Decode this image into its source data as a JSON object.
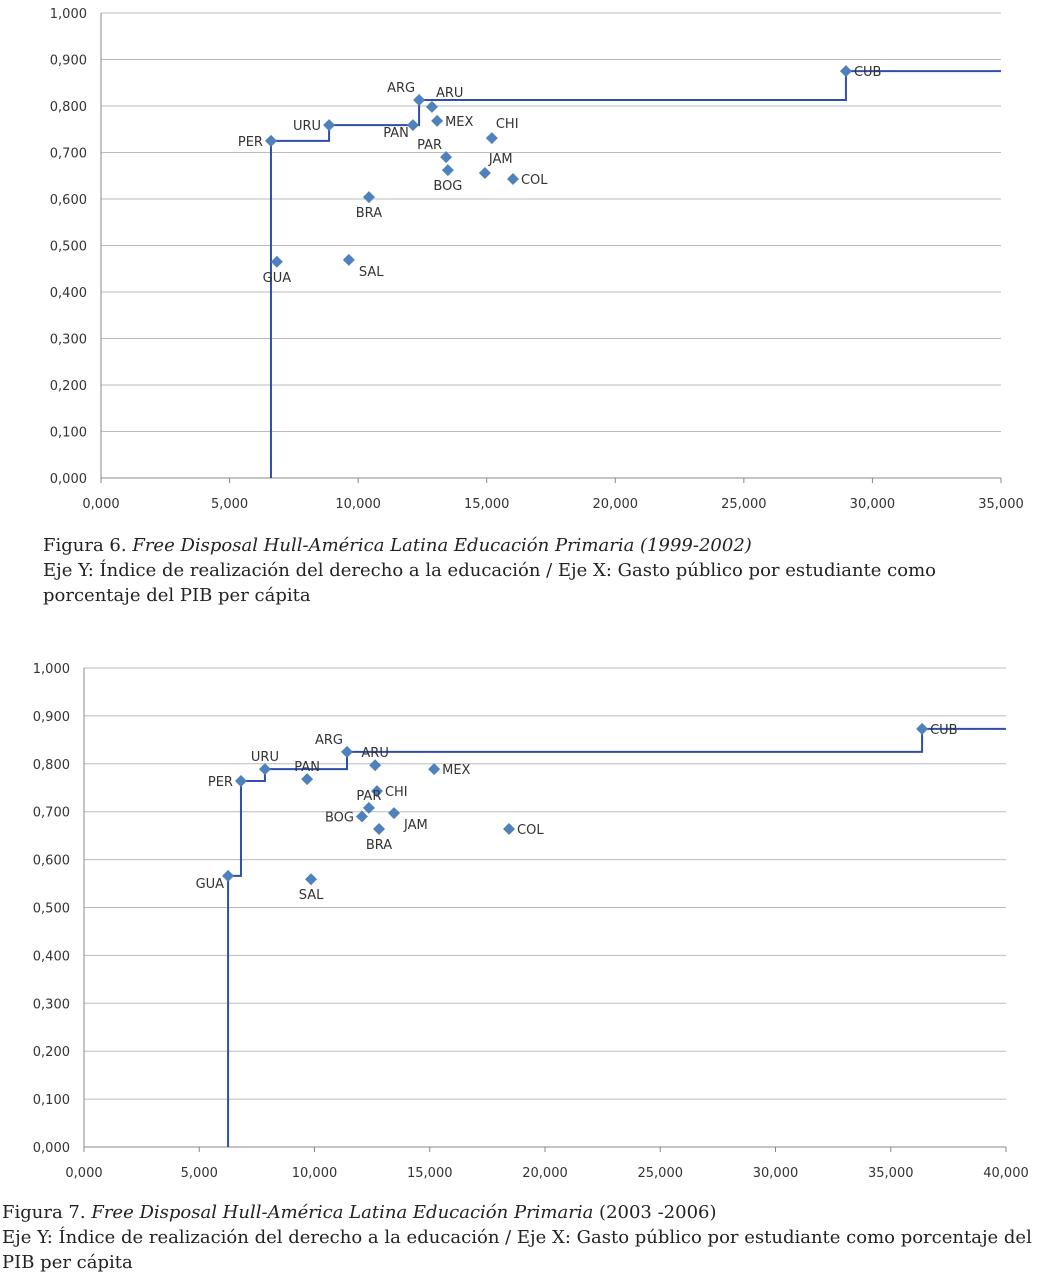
{
  "chart_data": [
    {
      "type": "scatter",
      "title": "Figura 6. Free Disposal Hull-América Latina Educación Primaria (1999-2002)",
      "xlabel": "Gasto público por estudiante como porcentaje del PIB per cápita",
      "ylabel": "Índice de realización del derecho a la educación",
      "xlim": [
        0,
        35000
      ],
      "ylim": [
        0,
        1
      ],
      "xticks": [
        "0,000",
        "5,000",
        "10,000",
        "15,000",
        "20,000",
        "25,000",
        "30,000",
        "35,000"
      ],
      "xtick_values": [
        0,
        5000,
        10000,
        15000,
        20000,
        25000,
        30000,
        35000
      ],
      "yticks": [
        "0,000",
        "0,100",
        "0,200",
        "0,300",
        "0,400",
        "0,500",
        "0,600",
        "0,700",
        "0,800",
        "0,900",
        "1,000"
      ],
      "ytick_values": [
        0,
        0.1,
        0.2,
        0.3,
        0.4,
        0.5,
        0.6,
        0.7,
        0.8,
        0.9,
        1.0
      ],
      "grid": true,
      "marker_color": "#4f81bd",
      "line_color": "#2f4fa8",
      "points": [
        {
          "label": "CUB",
          "x": 28970,
          "y": 0.875,
          "pos": "right"
        },
        {
          "label": "ARG",
          "x": 12370,
          "y": 0.813,
          "pos": "above-left"
        },
        {
          "label": "ARU",
          "x": 12870,
          "y": 0.798,
          "pos": "above-right"
        },
        {
          "label": "MEX",
          "x": 13070,
          "y": 0.768,
          "pos": "right"
        },
        {
          "label": "PAN",
          "x": 12130,
          "y": 0.759,
          "pos": "below-left"
        },
        {
          "label": "URU",
          "x": 8870,
          "y": 0.759,
          "pos": "left"
        },
        {
          "label": "PER",
          "x": 6610,
          "y": 0.725,
          "pos": "left"
        },
        {
          "label": "CHI",
          "x": 15200,
          "y": 0.731,
          "pos": "above-right"
        },
        {
          "label": "PAR",
          "x": 13420,
          "y": 0.69,
          "pos": "above-left"
        },
        {
          "label": "BOG",
          "x": 13490,
          "y": 0.662,
          "pos": "below"
        },
        {
          "label": "JAM",
          "x": 14930,
          "y": 0.656,
          "pos": "above-right"
        },
        {
          "label": "COL",
          "x": 16020,
          "y": 0.643,
          "pos": "right"
        },
        {
          "label": "BRA",
          "x": 10420,
          "y": 0.604,
          "pos": "below"
        },
        {
          "label": "GUA",
          "x": 6840,
          "y": 0.465,
          "pos": "below"
        },
        {
          "label": "SAL",
          "x": 9640,
          "y": 0.469,
          "pos": "below-right"
        }
      ],
      "frontier": [
        "PER",
        "URU",
        "ARG",
        "CUB"
      ]
    },
    {
      "type": "scatter",
      "title": "Figura 7. Free Disposal Hull-América Latina Educación Primaria (2003 -2006)",
      "xlabel": "Gasto público por estudiante como porcentaje del PIB per cápita",
      "ylabel": "Índice de realización del derecho a la educación",
      "xlim": [
        0,
        40000
      ],
      "ylim": [
        0,
        1
      ],
      "xticks": [
        "0,000",
        "5,000",
        "10,000",
        "15,000",
        "20,000",
        "25,000",
        "30,000",
        "35,000",
        "40,000"
      ],
      "xtick_values": [
        0,
        5000,
        10000,
        15000,
        20000,
        25000,
        30000,
        35000,
        40000
      ],
      "yticks": [
        "0,000",
        "0,100",
        "0,200",
        "0,300",
        "0,400",
        "0,500",
        "0,600",
        "0,700",
        "0,800",
        "0,900",
        "1,000"
      ],
      "ytick_values": [
        0,
        0.1,
        0.2,
        0.3,
        0.4,
        0.5,
        0.6,
        0.7,
        0.8,
        0.9,
        1.0
      ],
      "grid": true,
      "marker_color": "#4f81bd",
      "line_color": "#2f4fa8",
      "points": [
        {
          "label": "CUB",
          "x": 36360,
          "y": 0.873,
          "pos": "right"
        },
        {
          "label": "ARG",
          "x": 11410,
          "y": 0.825,
          "pos": "above-left"
        },
        {
          "label": "ARU",
          "x": 12630,
          "y": 0.797,
          "pos": "above"
        },
        {
          "label": "MEX",
          "x": 15190,
          "y": 0.789,
          "pos": "right"
        },
        {
          "label": "URU",
          "x": 7850,
          "y": 0.789,
          "pos": "above"
        },
        {
          "label": "PAN",
          "x": 9680,
          "y": 0.768,
          "pos": "above"
        },
        {
          "label": "PER",
          "x": 6810,
          "y": 0.764,
          "pos": "left"
        },
        {
          "label": "CHI",
          "x": 12710,
          "y": 0.743,
          "pos": "right"
        },
        {
          "label": "PAR",
          "x": 12360,
          "y": 0.708,
          "pos": "above"
        },
        {
          "label": "JAM",
          "x": 13450,
          "y": 0.697,
          "pos": "below-right"
        },
        {
          "label": "BOG",
          "x": 12060,
          "y": 0.69,
          "pos": "left"
        },
        {
          "label": "BRA",
          "x": 12800,
          "y": 0.664,
          "pos": "below"
        },
        {
          "label": "COL",
          "x": 18440,
          "y": 0.664,
          "pos": "right"
        },
        {
          "label": "GUA",
          "x": 6250,
          "y": 0.566,
          "pos": "below-left"
        },
        {
          "label": "SAL",
          "x": 9850,
          "y": 0.559,
          "pos": "below"
        }
      ],
      "frontier": [
        "GUA",
        "PER",
        "URU",
        "ARG",
        "CUB"
      ]
    }
  ],
  "captions": [
    {
      "prefix": "Figura  6. ",
      "title": "Free Disposal Hull-América Latina Educación Primaria (1999-2002)",
      "title_suffix": "",
      "line2": "Eje Y: Índice de realización del derecho a la educación / Eje X: Gasto público por estudiante como porcentaje del PIB per cápita"
    },
    {
      "prefix": "Figura  7. ",
      "title": "Free Disposal Hull-América Latina Educación Primaria",
      "title_suffix": " (2003 -2006)",
      "line2": "Eje Y: Índice de realización del derecho a la educación / Eje X: Gasto público por estudiante como porcentaje del PIB per cápita"
    }
  ]
}
